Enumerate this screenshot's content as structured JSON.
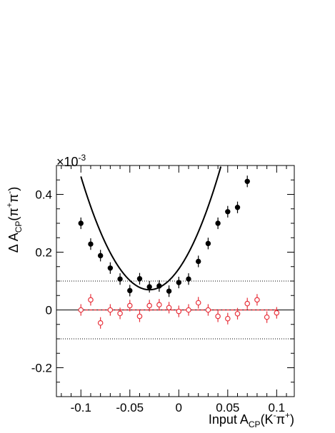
{
  "chart_data": {
    "type": "scatter",
    "multiplier": "×10",
    "multiplier_exp": "-3",
    "x_label": {
      "main": "Input A",
      "sub": "CP",
      "paren": "(K",
      "sup1": "-",
      "pi": "π",
      "sup2": "+",
      "close": ")"
    },
    "y_label": {
      "main": "Δ A",
      "sub": "CP",
      "paren": "(π",
      "sup1": "+",
      "pi": "π",
      "sup2": "-",
      "close": ")"
    },
    "xlim": [
      -0.125,
      0.118
    ],
    "ylim": [
      -0.3,
      0.5
    ],
    "x_ticks": [
      -0.1,
      -0.05,
      0,
      0.05,
      0.1
    ],
    "x_tick_labels": [
      "-0.1",
      "-0.05",
      "0",
      "0.05",
      "0.1"
    ],
    "y_ticks": [
      -0.2,
      0,
      0.2,
      0.4
    ],
    "y_tick_labels": [
      "-0.2",
      "0",
      "0.2",
      "0.4"
    ],
    "reference_lines": [
      0.1,
      -0.1
    ],
    "zero_line": 0,
    "series": [
      {
        "style": "filled",
        "color": "#000000",
        "x": [
          -0.1,
          -0.09,
          -0.08,
          -0.07,
          -0.06,
          -0.05,
          -0.04,
          -0.03,
          -0.02,
          -0.01,
          0.0,
          0.01,
          0.02,
          0.03,
          0.04,
          0.05,
          0.06,
          0.07
        ],
        "y": [
          0.3,
          0.228,
          0.188,
          0.145,
          0.107,
          0.067,
          0.108,
          0.08,
          0.083,
          0.065,
          0.095,
          0.107,
          0.168,
          0.23,
          0.3,
          0.34,
          0.355,
          0.445
        ],
        "err": [
          0.02,
          0.02,
          0.02,
          0.02,
          0.02,
          0.02,
          0.02,
          0.02,
          0.02,
          0.02,
          0.02,
          0.02,
          0.02,
          0.02,
          0.02,
          0.02,
          0.02,
          0.02
        ]
      },
      {
        "style": "open",
        "color": "#e8323c",
        "x": [
          -0.1,
          -0.09,
          -0.08,
          -0.07,
          -0.06,
          -0.05,
          -0.04,
          -0.03,
          -0.02,
          -0.01,
          0.0,
          0.01,
          0.02,
          0.03,
          0.04,
          0.05,
          0.06,
          0.07,
          0.08,
          0.09,
          0.1
        ],
        "y": [
          0.0,
          0.035,
          -0.045,
          0.0,
          -0.012,
          0.015,
          -0.022,
          0.015,
          0.018,
          0.008,
          -0.005,
          0.0,
          0.025,
          0.0,
          -0.022,
          -0.03,
          -0.013,
          0.022,
          0.035,
          -0.025,
          -0.01
        ],
        "err": [
          0.02,
          0.02,
          0.02,
          0.02,
          0.02,
          0.02,
          0.02,
          0.02,
          0.02,
          0.02,
          0.02,
          0.02,
          0.02,
          0.02,
          0.02,
          0.02,
          0.02,
          0.02,
          0.02,
          0.02,
          0.02
        ]
      }
    ],
    "fits": [
      {
        "kind": "quadratic",
        "color": "#000000",
        "vertex_x": -0.03,
        "vertex_y": 0.07,
        "curvature": 80
      },
      {
        "kind": "constant",
        "color": "#e8323c",
        "value": 0
      }
    ]
  }
}
